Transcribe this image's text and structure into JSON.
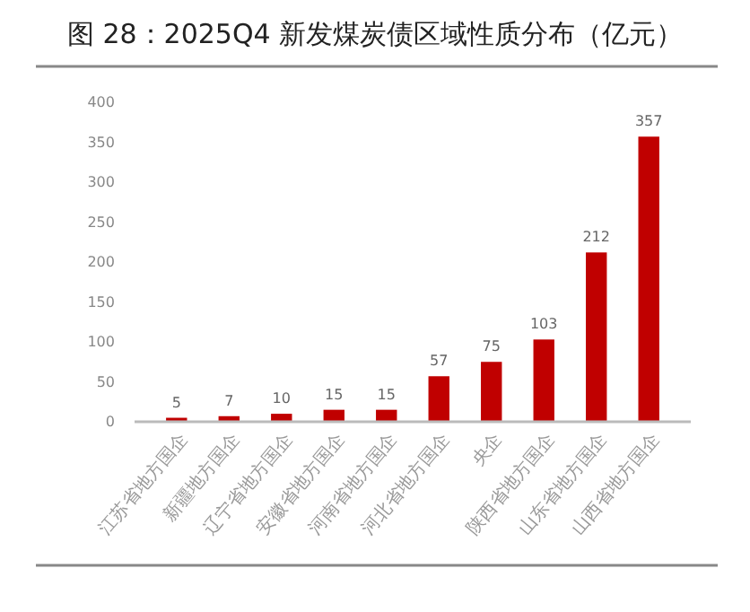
{
  "chart_data": {
    "type": "bar",
    "title": "图 28：2025Q4 新发煤炭债区域性质分布（亿元）",
    "categories": [
      "江苏省地方国企",
      "新疆地方国企",
      "辽宁省地方国企",
      "安徽省地方国企",
      "河南省地方国企",
      "河北省地方国企",
      "央企",
      "陕西省地方国企",
      "山东省地方国企",
      "山西省地方国企"
    ],
    "values": [
      5,
      7,
      10,
      15,
      15,
      57,
      75,
      103,
      212,
      357
    ],
    "color": "#c00000",
    "ylim": [
      0,
      400
    ],
    "yticks": [
      0,
      50,
      100,
      150,
      200,
      250,
      300,
      350,
      400
    ],
    "data_labels": true,
    "grid": false
  }
}
